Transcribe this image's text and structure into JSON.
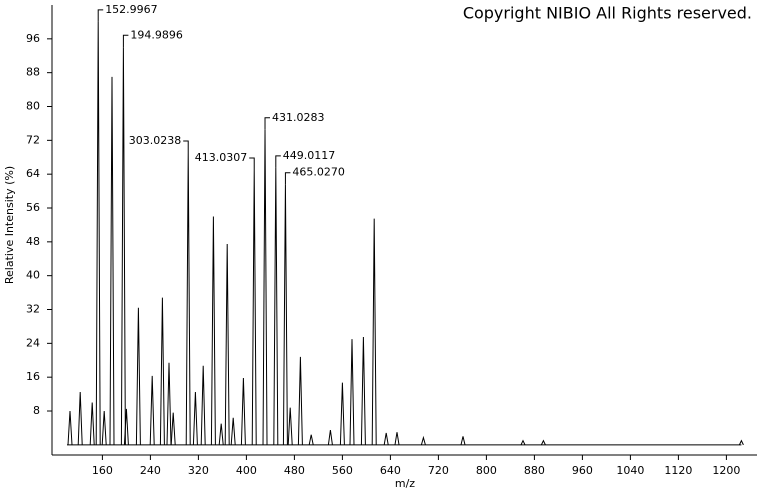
{
  "chart_data": {
    "type": "spectrum",
    "title": "Copyright NIBIO All Rights reserved.",
    "x_label": "m/z",
    "y_label": "Relative Intensity (%)",
    "color": "#000000",
    "x": [
      106,
      123,
      143,
      152.9967,
      163,
      176,
      194.9896,
      200,
      220,
      243,
      260,
      271,
      278,
      303.0238,
      315,
      328,
      345,
      358,
      368,
      378,
      395,
      413.0307,
      431.0283,
      449.0117,
      465.027,
      473,
      490,
      508,
      540,
      560,
      576,
      595,
      613,
      633,
      651,
      695,
      761,
      861,
      895,
      1225
    ],
    "values": [
      8,
      12.5,
      10,
      100,
      8,
      87,
      94,
      8.5,
      32.4,
      16.3,
      34.8,
      19.4,
      7.6,
      69,
      12.5,
      18.7,
      54,
      5,
      47.5,
      6.4,
      15.8,
      65,
      74.5,
      65.5,
      61.5,
      8.8,
      20.8,
      2.4,
      3.5,
      14.7,
      25,
      25.5,
      53.5,
      2.8,
      3,
      1.7,
      2,
      1,
      1,
      1
    ],
    "annotations": [
      {
        "x": 152.9967,
        "label": "152.9967"
      },
      {
        "x": 194.9896,
        "label": "194.9896"
      },
      {
        "x": 303.0238,
        "label": "303.0238"
      },
      {
        "x": 413.0307,
        "label": "413.0307"
      },
      {
        "x": 431.0283,
        "label": "431.0283"
      },
      {
        "x": 449.0117,
        "label": "449.0117"
      },
      {
        "x": 465.027,
        "label": "465.0270"
      }
    ],
    "xlim": [
      76,
      1251
    ],
    "ylim": [
      -2.4,
      104
    ],
    "xticks": [
      160,
      240,
      320,
      400,
      480,
      560,
      640,
      720,
      800,
      880,
      960,
      1040,
      1120,
      1200
    ],
    "yticks": [
      8,
      16,
      24,
      32,
      40,
      48,
      56,
      64,
      72,
      80,
      88,
      96
    ]
  }
}
